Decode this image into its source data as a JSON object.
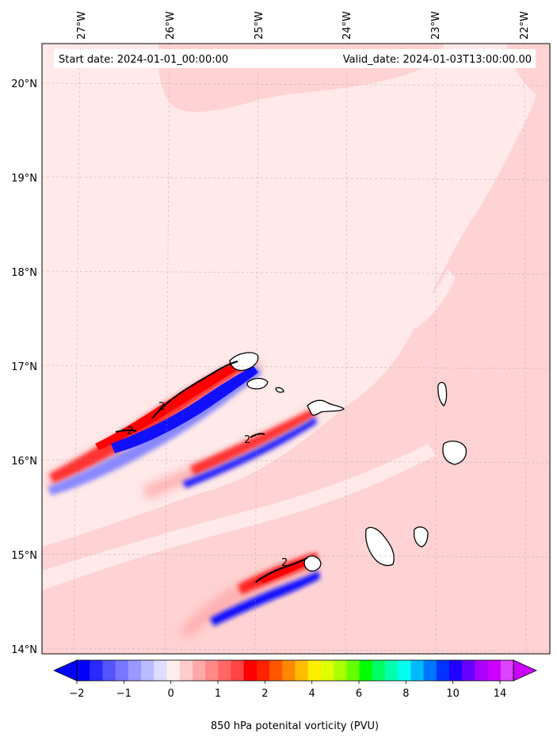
{
  "header": {
    "start_date": "Start date: 2024-01-01_00:00:00",
    "valid_date": "Valid_date: 2024-01-03T13:00:00.00"
  },
  "lon_labels": [
    "27°W",
    "26°W",
    "25°W",
    "24°W",
    "23°W",
    "22°W"
  ],
  "lat_labels": [
    "20°N",
    "19°N",
    "18°N",
    "17°N",
    "16°N",
    "15°N",
    "14°N"
  ],
  "colorbar": {
    "tick_labels": [
      "−2",
      "−1",
      "0",
      "1",
      "2",
      "4",
      "6",
      "8",
      "10",
      "14"
    ],
    "title": "850 hPa potenital vorticity (PVU)",
    "colors": [
      "#0000ff",
      "#2a2aff",
      "#5555ff",
      "#7777ff",
      "#9999ff",
      "#bbbbff",
      "#ddddff",
      "#ffeeee",
      "#ffcccc",
      "#ffaaaa",
      "#ff8888",
      "#ff6666",
      "#ff4444",
      "#ff0000",
      "#ff2200",
      "#ff5500",
      "#ff8800",
      "#ffbb00",
      "#ffee00",
      "#ddff00",
      "#aaff00",
      "#66ff00",
      "#00ff00",
      "#00ff66",
      "#00ffaa",
      "#00ffee",
      "#00bbff",
      "#0077ff",
      "#0033ff",
      "#2200ff",
      "#6600ff",
      "#aa00ff",
      "#cc00ff",
      "#dd44ff"
    ]
  },
  "contour_labels": [
    "2",
    "2",
    "2",
    "2"
  ],
  "map_colors": {
    "background": "#ffe9e9",
    "light_pink": "#ffd3d3",
    "red": "#ff2020",
    "blue": "#1010ff",
    "land": "#ffffff"
  }
}
